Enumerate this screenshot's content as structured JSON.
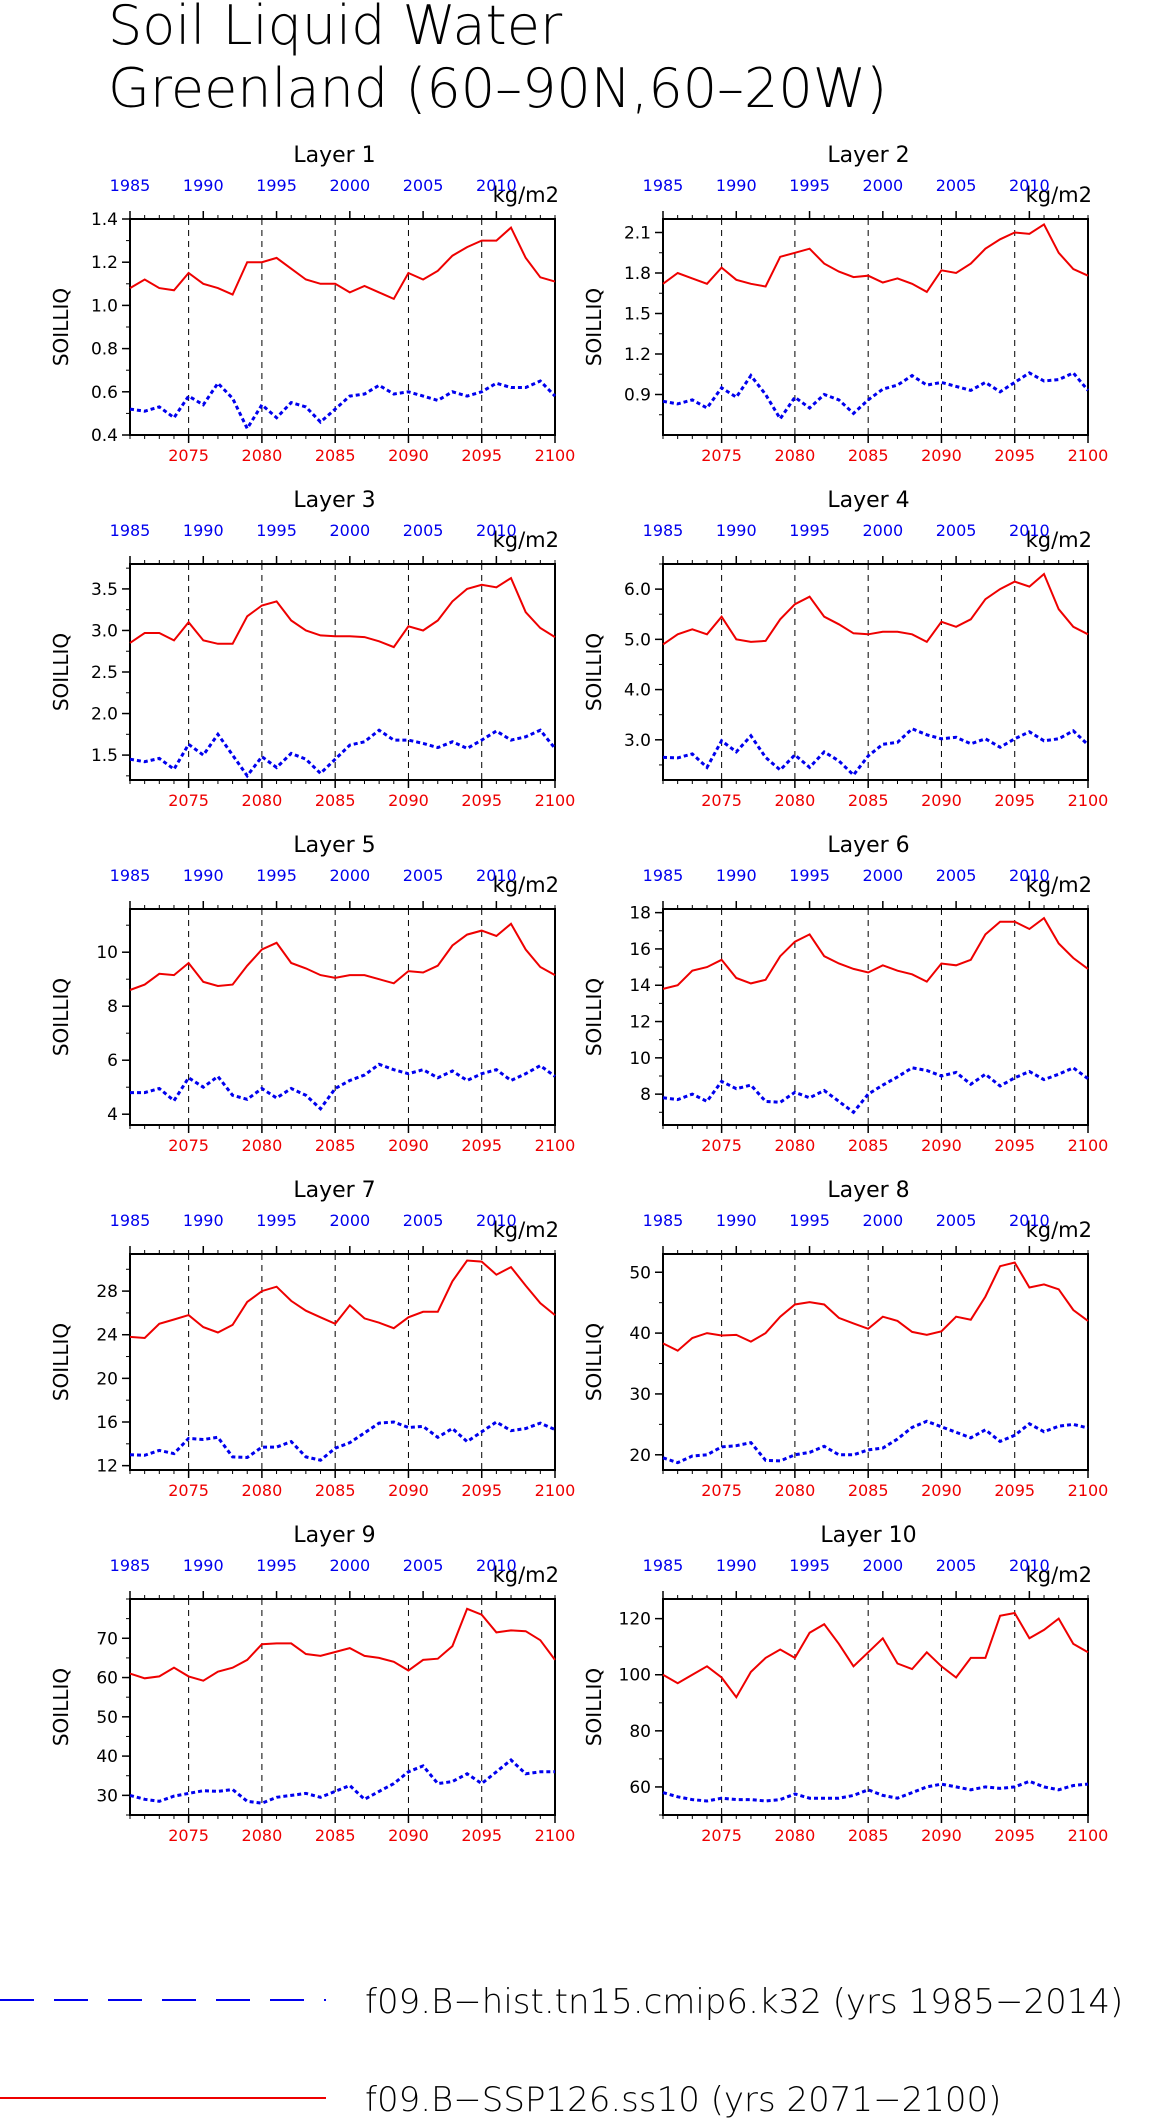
{
  "title": {
    "line1": "Soil Liquid Water",
    "line2": "Greenland (60–90N,60–20W)"
  },
  "colors": {
    "hist": "#0000ee",
    "ssp": "#ee0000"
  },
  "legend": [
    {
      "text": "f09.B−hist.tn15.cmip6.k32 (yrs 1985−2014)",
      "style": "dashed",
      "color": "#0000ee"
    },
    {
      "text": "f09.B−SSP126.ss10 (yrs 2071−2100)",
      "style": "solid",
      "color": "#ee0000"
    }
  ],
  "top_axis": {
    "ticks": [
      "1985",
      "1990",
      "1995",
      "2000",
      "2005",
      "2010"
    ],
    "years": [
      1985,
      1990,
      1995,
      2000,
      2005,
      2010
    ]
  },
  "bottom_axis": {
    "ticks": [
      "2075",
      "2080",
      "2085",
      "2090",
      "2095",
      "2100"
    ],
    "years": [
      2075,
      2080,
      2085,
      2090,
      2095,
      2100
    ]
  },
  "chart_data": [
    {
      "type": "line",
      "title": "Layer 1",
      "ylabel": "SOILLIQ",
      "units": "kg/m2",
      "ylim": [
        0.4,
        1.4
      ],
      "yticks": [
        0.4,
        0.6,
        0.8,
        1.0,
        1.2,
        1.4
      ],
      "ytick_labels": [
        "0.4",
        "0.6",
        "0.8",
        "1.0",
        "1.2",
        "1.4"
      ],
      "x_ssp": [
        2071,
        2072,
        2073,
        2074,
        2075,
        2076,
        2077,
        2078,
        2079,
        2080,
        2081,
        2082,
        2083,
        2084,
        2085,
        2086,
        2087,
        2088,
        2089,
        2090,
        2091,
        2092,
        2093,
        2094,
        2095,
        2096,
        2097,
        2098,
        2099,
        2100
      ],
      "x_hist": [
        1985,
        1986,
        1987,
        1988,
        1989,
        1990,
        1991,
        1992,
        1993,
        1994,
        1995,
        1996,
        1997,
        1998,
        1999,
        2000,
        2001,
        2002,
        2003,
        2004,
        2005,
        2006,
        2007,
        2008,
        2009,
        2010,
        2011,
        2012,
        2013,
        2014
      ],
      "series": [
        {
          "values": [
            0.52,
            0.51,
            0.53,
            0.48,
            0.58,
            0.54,
            0.64,
            0.57,
            0.43,
            0.54,
            0.48,
            0.55,
            0.53,
            0.46,
            0.52,
            0.58,
            0.59,
            0.63,
            0.59,
            0.6,
            0.58,
            0.56,
            0.6,
            0.58,
            0.6,
            0.64,
            0.62,
            0.62,
            0.65,
            0.58
          ]
        },
        {
          "values": [
            1.08,
            1.12,
            1.08,
            1.07,
            1.15,
            1.1,
            1.08,
            1.05,
            1.2,
            1.2,
            1.22,
            1.17,
            1.12,
            1.1,
            1.1,
            1.06,
            1.09,
            1.06,
            1.03,
            1.15,
            1.12,
            1.16,
            1.23,
            1.27,
            1.3,
            1.3,
            1.36,
            1.22,
            1.13,
            1.11
          ]
        }
      ]
    },
    {
      "type": "line",
      "title": "Layer 2",
      "ylabel": "SOILLIQ",
      "units": "kg/m2",
      "ylim": [
        0.6,
        2.2
      ],
      "yticks": [
        0.9,
        1.2,
        1.5,
        1.8,
        2.1
      ],
      "ytick_labels": [
        "0.9",
        "1.2",
        "1.5",
        "1.8",
        "2.1"
      ],
      "series": [
        {
          "values": [
            0.85,
            0.83,
            0.86,
            0.8,
            0.95,
            0.88,
            1.04,
            0.9,
            0.72,
            0.88,
            0.8,
            0.9,
            0.86,
            0.76,
            0.86,
            0.94,
            0.97,
            1.04,
            0.97,
            0.99,
            0.96,
            0.93,
            0.99,
            0.92,
            0.99,
            1.06,
            1.0,
            1.01,
            1.06,
            0.93
          ]
        },
        {
          "values": [
            1.72,
            1.8,
            1.76,
            1.72,
            1.84,
            1.75,
            1.72,
            1.7,
            1.92,
            1.95,
            1.98,
            1.87,
            1.81,
            1.77,
            1.78,
            1.73,
            1.76,
            1.72,
            1.66,
            1.82,
            1.8,
            1.87,
            1.98,
            2.05,
            2.1,
            2.09,
            2.16,
            1.95,
            1.83,
            1.78
          ]
        }
      ]
    },
    {
      "type": "line",
      "title": "Layer 3",
      "ylabel": "SOILLIQ",
      "units": "kg/m2",
      "ylim": [
        1.2,
        3.8
      ],
      "yticks": [
        1.5,
        2.0,
        2.5,
        3.0,
        3.5
      ],
      "ytick_labels": [
        "1.5",
        "2.0",
        "2.5",
        "3.0",
        "3.5"
      ],
      "series": [
        {
          "values": [
            1.45,
            1.42,
            1.46,
            1.33,
            1.63,
            1.5,
            1.75,
            1.5,
            1.25,
            1.48,
            1.35,
            1.52,
            1.45,
            1.28,
            1.45,
            1.62,
            1.66,
            1.8,
            1.68,
            1.68,
            1.64,
            1.59,
            1.66,
            1.58,
            1.68,
            1.79,
            1.68,
            1.72,
            1.8,
            1.58
          ]
        },
        {
          "values": [
            2.85,
            2.97,
            2.97,
            2.88,
            3.1,
            2.88,
            2.84,
            2.84,
            3.17,
            3.3,
            3.35,
            3.12,
            3.0,
            2.94,
            2.93,
            2.93,
            2.92,
            2.87,
            2.8,
            3.05,
            3.0,
            3.12,
            3.35,
            3.5,
            3.55,
            3.52,
            3.63,
            3.22,
            3.03,
            2.92
          ]
        }
      ]
    },
    {
      "type": "line",
      "title": "Layer 4",
      "ylabel": "SOILLIQ",
      "units": "kg/m2",
      "ylim": [
        2.2,
        6.5
      ],
      "yticks": [
        3.0,
        4.0,
        5.0,
        6.0
      ],
      "ytick_labels": [
        "3.0",
        "4.0",
        "5.0",
        "6.0"
      ],
      "series": [
        {
          "values": [
            2.65,
            2.64,
            2.72,
            2.45,
            2.98,
            2.76,
            3.08,
            2.65,
            2.4,
            2.7,
            2.45,
            2.76,
            2.58,
            2.3,
            2.68,
            2.91,
            2.95,
            3.22,
            3.1,
            3.02,
            3.05,
            2.92,
            3.02,
            2.85,
            3.02,
            3.16,
            2.98,
            3.02,
            3.18,
            2.9
          ]
        },
        {
          "values": [
            4.9,
            5.1,
            5.2,
            5.1,
            5.45,
            5.0,
            4.95,
            4.97,
            5.4,
            5.7,
            5.85,
            5.45,
            5.3,
            5.12,
            5.1,
            5.15,
            5.15,
            5.1,
            4.95,
            5.35,
            5.25,
            5.4,
            5.8,
            6.0,
            6.15,
            6.05,
            6.3,
            5.6,
            5.25,
            5.1
          ]
        }
      ]
    },
    {
      "type": "line",
      "title": "Layer 5",
      "ylabel": "SOILLIQ",
      "units": "kg/m2",
      "ylim": [
        3.6,
        11.6
      ],
      "yticks": [
        4,
        6,
        8,
        10
      ],
      "ytick_labels": [
        "4",
        "6",
        "8",
        "10"
      ],
      "series": [
        {
          "values": [
            4.8,
            4.8,
            4.95,
            4.5,
            5.35,
            5.0,
            5.4,
            4.7,
            4.55,
            4.95,
            4.6,
            4.95,
            4.7,
            4.2,
            4.95,
            5.25,
            5.45,
            5.85,
            5.65,
            5.5,
            5.65,
            5.35,
            5.6,
            5.25,
            5.5,
            5.65,
            5.25,
            5.5,
            5.8,
            5.4
          ]
        },
        {
          "values": [
            8.6,
            8.8,
            9.2,
            9.15,
            9.6,
            8.9,
            8.75,
            8.8,
            9.5,
            10.1,
            10.35,
            9.6,
            9.4,
            9.15,
            9.05,
            9.15,
            9.15,
            9.0,
            8.85,
            9.3,
            9.25,
            9.5,
            10.25,
            10.65,
            10.8,
            10.6,
            11.05,
            10.1,
            9.45,
            9.15
          ]
        }
      ]
    },
    {
      "type": "line",
      "title": "Layer 6",
      "ylabel": "SOILLIQ",
      "units": "kg/m2",
      "ylim": [
        6.3,
        18.2
      ],
      "yticks": [
        8,
        10,
        12,
        14,
        16,
        18
      ],
      "ytick_labels": [
        "8",
        "10",
        "12",
        "14",
        "16",
        "18"
      ],
      "series": [
        {
          "values": [
            7.8,
            7.7,
            8.0,
            7.6,
            8.7,
            8.3,
            8.5,
            7.6,
            7.55,
            8.1,
            7.8,
            8.2,
            7.6,
            7.0,
            8.0,
            8.5,
            8.95,
            9.45,
            9.3,
            9.0,
            9.2,
            8.55,
            9.1,
            8.45,
            8.9,
            9.25,
            8.8,
            9.1,
            9.45,
            8.85
          ]
        },
        {
          "values": [
            13.8,
            14.0,
            14.8,
            15.0,
            15.4,
            14.4,
            14.1,
            14.3,
            15.6,
            16.4,
            16.8,
            15.6,
            15.2,
            14.9,
            14.7,
            15.1,
            14.8,
            14.6,
            14.2,
            15.2,
            15.1,
            15.4,
            16.8,
            17.5,
            17.5,
            17.1,
            17.7,
            16.3,
            15.5,
            14.9
          ]
        }
      ]
    },
    {
      "type": "line",
      "title": "Layer 7",
      "ylabel": "SOILLIQ",
      "units": "kg/m2",
      "ylim": [
        11.6,
        31.4
      ],
      "yticks": [
        12,
        16,
        20,
        24,
        28
      ],
      "ytick_labels": [
        "12",
        "16",
        "20",
        "24",
        "28"
      ],
      "series": [
        {
          "values": [
            13.0,
            12.95,
            13.4,
            13.1,
            14.5,
            14.4,
            14.6,
            12.8,
            12.75,
            13.7,
            13.7,
            14.2,
            12.8,
            12.5,
            13.6,
            14.1,
            15.0,
            15.9,
            16.0,
            15.5,
            15.6,
            14.6,
            15.4,
            14.2,
            15.1,
            16.0,
            15.2,
            15.4,
            15.9,
            15.3
          ]
        },
        {
          "values": [
            23.8,
            23.7,
            25.0,
            25.4,
            25.8,
            24.7,
            24.2,
            24.9,
            27.0,
            28.0,
            28.4,
            27.1,
            26.2,
            25.6,
            25.0,
            26.7,
            25.5,
            25.1,
            24.6,
            25.6,
            26.1,
            26.1,
            28.9,
            30.8,
            30.7,
            29.5,
            30.2,
            28.5,
            26.9,
            25.8
          ]
        }
      ]
    },
    {
      "type": "line",
      "title": "Layer 8",
      "ylabel": "SOILLIQ",
      "units": "kg/m2",
      "ylim": [
        17.5,
        53
      ],
      "yticks": [
        20,
        30,
        40,
        50
      ],
      "ytick_labels": [
        "20",
        "30",
        "40",
        "50"
      ],
      "series": [
        {
          "values": [
            19.5,
            18.7,
            19.8,
            20.0,
            21.3,
            21.5,
            22.0,
            19.1,
            19.0,
            20.0,
            20.4,
            21.4,
            20.0,
            20.0,
            20.8,
            21.1,
            22.6,
            24.5,
            25.5,
            24.6,
            23.7,
            22.8,
            24.1,
            22.2,
            23.2,
            25.1,
            23.8,
            24.7,
            25.0,
            24.4
          ]
        },
        {
          "values": [
            38.3,
            37.1,
            39.2,
            40.0,
            39.6,
            39.7,
            38.6,
            40.0,
            42.7,
            44.7,
            45.1,
            44.7,
            42.5,
            41.6,
            40.7,
            42.7,
            42.0,
            40.2,
            39.7,
            40.3,
            42.7,
            42.2,
            46.0,
            51.0,
            51.6,
            47.5,
            48.0,
            47.2,
            43.8,
            42.0
          ]
        }
      ]
    },
    {
      "type": "line",
      "title": "Layer 9",
      "ylabel": "SOILLIQ",
      "units": "kg/m2",
      "ylim": [
        25,
        80
      ],
      "yticks": [
        30,
        40,
        50,
        60,
        70
      ],
      "ytick_labels": [
        "30",
        "40",
        "50",
        "60",
        "70"
      ],
      "series": [
        {
          "values": [
            30.0,
            29.0,
            28.5,
            29.8,
            30.5,
            31.2,
            31.0,
            31.5,
            28.5,
            28.0,
            29.5,
            30.0,
            30.5,
            29.5,
            31.0,
            32.5,
            29.0,
            31.0,
            33.0,
            36.0,
            37.5,
            33.0,
            33.5,
            35.5,
            33.0,
            36.0,
            39.0,
            35.5,
            36.0,
            36.0
          ]
        },
        {
          "values": [
            61.0,
            59.8,
            60.3,
            62.5,
            60.3,
            59.2,
            61.5,
            62.5,
            64.5,
            68.5,
            68.7,
            68.7,
            66.0,
            65.5,
            66.5,
            67.5,
            65.5,
            65.0,
            64.0,
            61.8,
            64.5,
            64.8,
            68.0,
            77.5,
            76.0,
            71.5,
            72.0,
            71.8,
            69.5,
            64.5
          ]
        }
      ]
    },
    {
      "type": "line",
      "title": "Layer 10",
      "ylabel": "SOILLIQ",
      "units": "kg/m2",
      "ylim": [
        50,
        127
      ],
      "yticks": [
        60,
        80,
        100,
        120
      ],
      "ytick_labels": [
        "60",
        "80",
        "100",
        "120"
      ],
      "series": [
        {
          "values": [
            58.0,
            56.5,
            55.5,
            55.0,
            56.0,
            55.5,
            55.5,
            55.0,
            55.5,
            57.5,
            56.0,
            56.0,
            56.0,
            57.0,
            59.0,
            57.0,
            56.0,
            58.0,
            60.0,
            61.0,
            60.0,
            59.0,
            60.0,
            59.5,
            60.0,
            62.0,
            60.0,
            59.0,
            60.5,
            61.0
          ]
        },
        {
          "values": [
            100.0,
            97.0,
            100.0,
            103.0,
            99.0,
            92.0,
            101.0,
            106.0,
            109.0,
            106.0,
            115.0,
            118.0,
            111.0,
            103.0,
            108.0,
            113.0,
            104.0,
            102.0,
            108.0,
            103.0,
            99.0,
            106.0,
            106.0,
            121.0,
            122.0,
            113.0,
            116.0,
            120.0,
            111.0,
            108.0
          ]
        }
      ]
    }
  ]
}
